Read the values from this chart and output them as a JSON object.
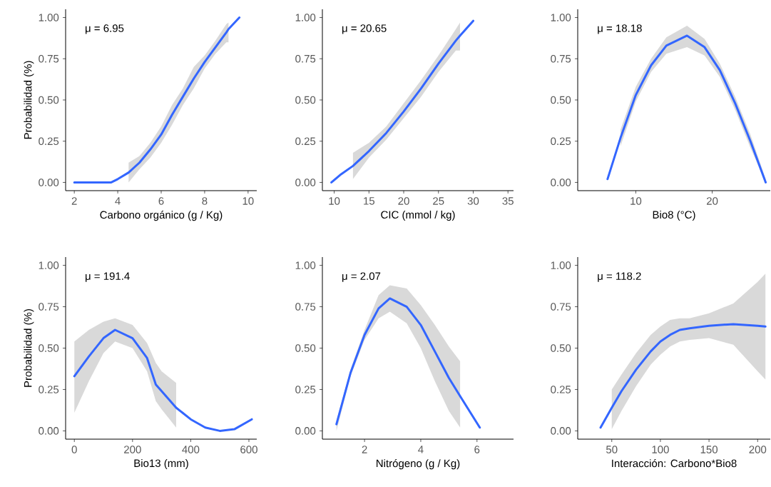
{
  "chart_data": [
    {
      "type": "line",
      "xlabel": "Carbono orgánico (g / Kg)",
      "ylabel": "Probabilidad (%)",
      "xlim": [
        1.6,
        10.4
      ],
      "ylim": [
        -0.05,
        1.05
      ],
      "xticks": [
        2,
        4,
        6,
        8,
        10
      ],
      "yticks": [
        {
          "value": 0,
          "label": "0.00"
        },
        {
          "value": 0.25,
          "label": "0.25"
        },
        {
          "value": 0.5,
          "label": "0.50"
        },
        {
          "value": 0.75,
          "label": "0.75"
        },
        {
          "value": 1,
          "label": "1.00"
        }
      ],
      "annotations": [
        "μ = 6.95"
      ],
      "series": [
        {
          "color": "#3366ff",
          "x": [
            2,
            3.7,
            4,
            4.5,
            5,
            5.5,
            6,
            6.5,
            7,
            7.5,
            8,
            8.5,
            9,
            9.1,
            9.6
          ],
          "values": [
            0,
            0,
            0.02,
            0.06,
            0.12,
            0.2,
            0.29,
            0.41,
            0.52,
            0.63,
            0.73,
            0.82,
            0.91,
            0.93,
            1.0
          ],
          "lower": [
            null,
            null,
            null,
            0.0,
            0.08,
            0.15,
            0.24,
            0.35,
            0.47,
            0.57,
            0.69,
            0.78,
            0.85,
            0.85,
            null
          ],
          "upper": [
            null,
            null,
            null,
            0.12,
            0.16,
            0.24,
            0.34,
            0.47,
            0.57,
            0.7,
            0.77,
            0.86,
            0.96,
            0.97,
            null
          ]
        }
      ]
    },
    {
      "type": "line",
      "xlabel": "CIC (mmol / kg)",
      "xlim": [
        8.3,
        35.8
      ],
      "ylim": [
        -0.05,
        1.05
      ],
      "xticks": [
        10,
        15,
        20,
        25,
        30,
        35
      ],
      "yticks": [
        {
          "value": 0,
          "label": "0.00"
        },
        {
          "value": 0.25,
          "label": "0.25"
        },
        {
          "value": 0.5,
          "label": "0.50"
        },
        {
          "value": 0.75,
          "label": "0.75"
        },
        {
          "value": 1,
          "label": "1.00"
        }
      ],
      "annotations": [
        "μ = 20.65"
      ],
      "series": [
        {
          "color": "#3366ff",
          "x": [
            9.6,
            11,
            12.7,
            15,
            17.5,
            20,
            22.5,
            25,
            27.5,
            28.1,
            30
          ],
          "values": [
            0.0,
            0.05,
            0.1,
            0.19,
            0.3,
            0.43,
            0.57,
            0.72,
            0.86,
            0.89,
            0.98
          ],
          "lower": [
            null,
            null,
            0.02,
            0.15,
            0.26,
            0.39,
            0.52,
            0.67,
            0.8,
            0.8,
            null
          ],
          "upper": [
            null,
            null,
            0.18,
            0.24,
            0.34,
            0.48,
            0.62,
            0.77,
            0.93,
            0.97,
            null
          ]
        }
      ]
    },
    {
      "type": "line",
      "xlabel": "Bio8 (°C)",
      "xlim": [
        2.4,
        27.6
      ],
      "ylim": [
        -0.05,
        1.05
      ],
      "xticks": [
        10,
        20
      ],
      "yticks": [
        {
          "value": 0,
          "label": "0.00"
        },
        {
          "value": 0.25,
          "label": "0.25"
        },
        {
          "value": 0.5,
          "label": "0.50"
        },
        {
          "value": 0.75,
          "label": "0.75"
        },
        {
          "value": 1,
          "label": "1.00"
        }
      ],
      "annotations": [
        "μ = 18.18"
      ],
      "series": [
        {
          "color": "#3366ff",
          "x": [
            6.3,
            8,
            10,
            12,
            14,
            16.7,
            19,
            21,
            23,
            25,
            27
          ],
          "values": [
            0.02,
            0.27,
            0.53,
            0.71,
            0.83,
            0.89,
            0.82,
            0.68,
            0.48,
            0.25,
            0.0
          ],
          "lower": [
            null,
            0.22,
            0.49,
            0.67,
            0.78,
            0.82,
            0.77,
            0.64,
            0.44,
            0.21,
            0.0
          ],
          "upper": [
            null,
            0.32,
            0.58,
            0.75,
            0.88,
            0.95,
            0.87,
            0.72,
            0.52,
            0.29,
            0.02
          ]
        }
      ]
    },
    {
      "type": "line",
      "xlabel": "Bio13 (mm)",
      "ylabel": "Probabilidad (%)",
      "xlim": [
        -30,
        627
      ],
      "ylim": [
        -0.05,
        1.05
      ],
      "xticks": [
        0,
        200,
        400,
        600
      ],
      "yticks": [
        {
          "value": 0,
          "label": "0.00"
        },
        {
          "value": 0.25,
          "label": "0.25"
        },
        {
          "value": 0.5,
          "label": "0.50"
        },
        {
          "value": 0.75,
          "label": "0.75"
        },
        {
          "value": 1,
          "label": "1.00"
        }
      ],
      "annotations": [
        "μ = 191.4"
      ],
      "series": [
        {
          "color": "#3366ff",
          "x": [
            0,
            50,
            100,
            140,
            200,
            250,
            280,
            300,
            350,
            400,
            450,
            500,
            550,
            610
          ],
          "values": [
            0.33,
            0.45,
            0.56,
            0.61,
            0.56,
            0.44,
            0.28,
            0.24,
            0.14,
            0.07,
            0.02,
            0.0,
            0.01,
            0.07
          ],
          "lower": [
            0.11,
            0.3,
            0.47,
            0.54,
            0.5,
            0.36,
            0.18,
            0.13,
            0.02,
            null,
            null,
            null,
            null,
            null
          ],
          "upper": [
            0.54,
            0.61,
            0.66,
            0.68,
            0.64,
            0.53,
            0.41,
            0.36,
            0.29,
            null,
            null,
            null,
            null,
            null
          ]
        }
      ]
    },
    {
      "type": "line",
      "xlabel": "Nitrógeno (g / Kg)",
      "xlim": [
        0.5,
        7.3
      ],
      "ylim": [
        -0.05,
        1.05
      ],
      "xticks": [
        2,
        4,
        6
      ],
      "yticks": [
        {
          "value": 0,
          "label": "0.00"
        },
        {
          "value": 0.25,
          "label": "0.25"
        },
        {
          "value": 0.5,
          "label": "0.50"
        },
        {
          "value": 0.75,
          "label": "0.75"
        },
        {
          "value": 1,
          "label": "1.00"
        }
      ],
      "annotations": [
        "μ = 2.07"
      ],
      "series": [
        {
          "color": "#3366ff",
          "x": [
            1.0,
            1.5,
            2,
            2.5,
            2.9,
            3.5,
            4,
            4.5,
            5,
            5.4,
            6.1
          ],
          "values": [
            0.04,
            0.35,
            0.58,
            0.74,
            0.8,
            0.75,
            0.64,
            0.48,
            0.32,
            0.21,
            0.02
          ],
          "lower": [
            0.0,
            0.33,
            0.55,
            0.68,
            0.72,
            0.65,
            0.5,
            0.3,
            0.12,
            0.02,
            null
          ],
          "upper": [
            0.06,
            0.37,
            0.61,
            0.82,
            0.88,
            0.86,
            0.76,
            0.64,
            0.51,
            0.42,
            null
          ]
        }
      ]
    },
    {
      "type": "line",
      "xlabel": "Interacción: Carbono*Bio8",
      "xlim": [
        15,
        213
      ],
      "ylim": [
        -0.05,
        1.05
      ],
      "xticks": [
        50,
        100,
        150,
        200
      ],
      "yticks": [
        {
          "value": 0,
          "label": "0.00"
        },
        {
          "value": 0.25,
          "label": "0.25"
        },
        {
          "value": 0.5,
          "label": "0.50"
        },
        {
          "value": 0.75,
          "label": "0.75"
        },
        {
          "value": 1,
          "label": "1.00"
        }
      ],
      "annotations": [
        "μ = 118.2"
      ],
      "series": [
        {
          "color": "#3366ff",
          "x": [
            38.5,
            50,
            60,
            75,
            90,
            100,
            110,
            120,
            130,
            150,
            175,
            200,
            208
          ],
          "values": [
            0.02,
            0.14,
            0.24,
            0.37,
            0.48,
            0.54,
            0.58,
            0.61,
            0.62,
            0.635,
            0.645,
            0.635,
            0.63
          ],
          "lower": [
            null,
            0.01,
            0.12,
            0.27,
            0.4,
            0.46,
            0.51,
            0.54,
            0.55,
            0.56,
            0.52,
            0.36,
            0.31
          ],
          "upper": [
            null,
            0.25,
            0.34,
            0.47,
            0.58,
            0.63,
            0.67,
            0.68,
            0.68,
            0.71,
            0.77,
            0.9,
            0.95
          ]
        }
      ]
    }
  ]
}
